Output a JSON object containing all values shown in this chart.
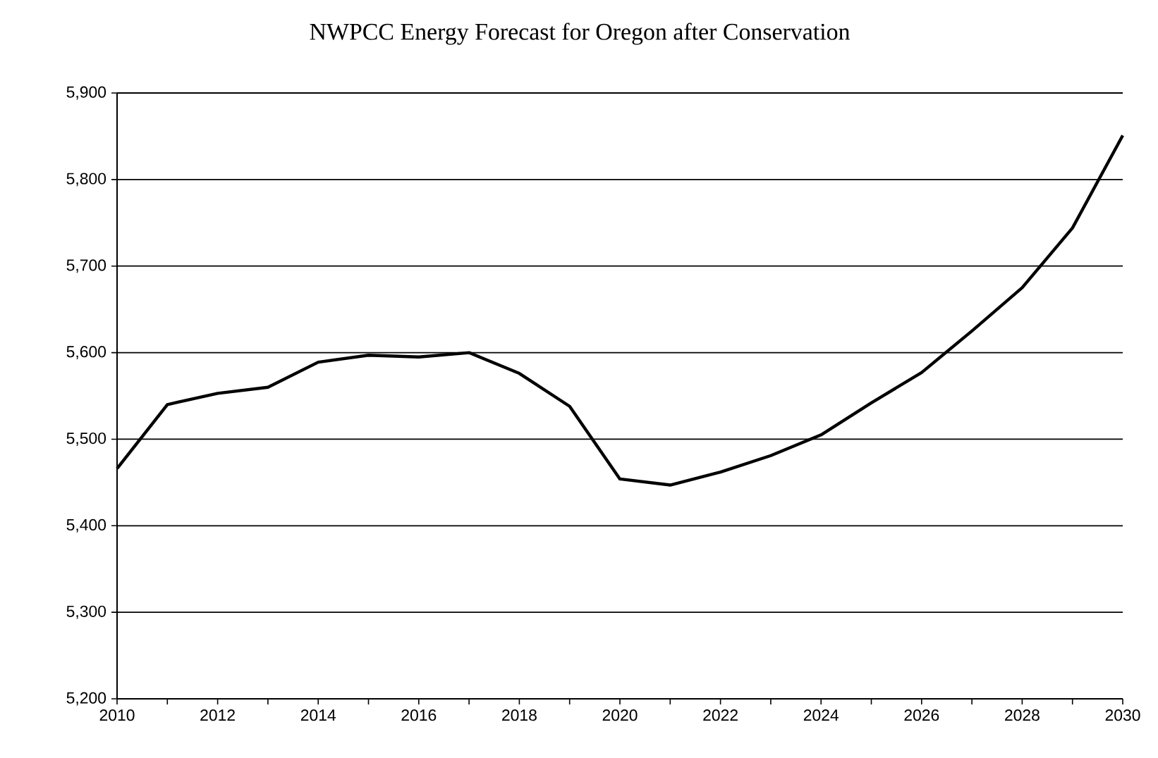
{
  "chart_data": {
    "type": "line",
    "title": "NWPCC Energy Forecast for Oregon after Conservation",
    "x": [
      2010,
      2011,
      2012,
      2013,
      2014,
      2015,
      2016,
      2017,
      2018,
      2019,
      2020,
      2021,
      2022,
      2023,
      2024,
      2025,
      2026,
      2027,
      2028,
      2029,
      2030
    ],
    "values": [
      5466,
      5540,
      5553,
      5560,
      5589,
      5597,
      5595,
      5600,
      5576,
      5538,
      5454,
      5447,
      5462,
      5481,
      5505,
      5542,
      5577,
      5625,
      5675,
      5744,
      5851
    ],
    "color": "#000000",
    "xlim": [
      2010,
      2030
    ],
    "xticks": [
      2010,
      {
        "value": 2011,
        "label": null
      },
      2012,
      {
        "value": 2013,
        "label": null
      },
      2014,
      {
        "value": 2015,
        "label": null
      },
      2016,
      {
        "value": 2017,
        "label": null
      },
      2018,
      {
        "value": 2019,
        "label": null
      },
      2020,
      {
        "value": 2021,
        "label": null
      },
      2022,
      {
        "value": 2023,
        "label": null
      },
      2024,
      {
        "value": 2025,
        "label": null
      },
      2026,
      {
        "value": 2027,
        "label": null
      },
      2028,
      {
        "value": 2029,
        "label": null
      },
      2030
    ],
    "ylim": [
      5200,
      5900
    ],
    "yticks": [
      {
        "value": 5200,
        "label": "5,200"
      },
      {
        "value": 5300,
        "label": "5,300"
      },
      {
        "value": 5400,
        "label": "5,400"
      },
      {
        "value": 5500,
        "label": "5,500"
      },
      {
        "value": 5600,
        "label": "5,600"
      },
      {
        "value": 5700,
        "label": "5,700"
      },
      {
        "value": 5800,
        "label": "5,800"
      },
      {
        "value": 5900,
        "label": "5,900"
      }
    ],
    "grid": "y"
  }
}
